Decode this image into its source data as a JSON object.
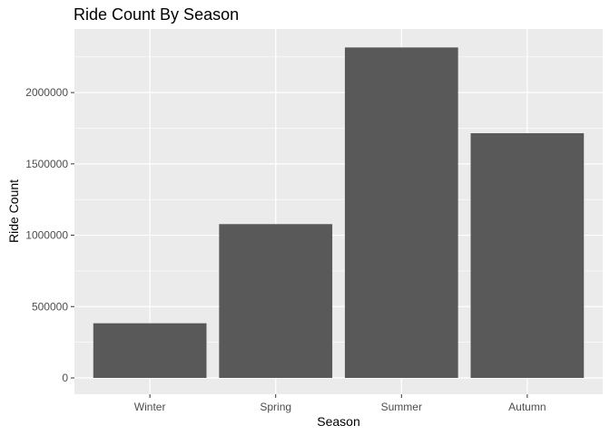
{
  "chart_data": {
    "type": "bar",
    "title": "Ride Count By Season",
    "xlabel": "Season",
    "ylabel": "Ride Count",
    "categories": [
      "Winter",
      "Spring",
      "Summer",
      "Autumn"
    ],
    "values": [
      383000,
      1078000,
      2316000,
      1715000
    ],
    "ylim": [
      0,
      2420000
    ],
    "yticks": [
      0,
      500000,
      1000000,
      1500000,
      2000000
    ],
    "ytick_labels": [
      "0",
      "500000",
      "1000000",
      "1500000",
      "2000000"
    ],
    "grid": true,
    "legend": "none",
    "colors": {
      "panel_bg": "#ebebeb",
      "grid_major": "#ffffff",
      "bar_fill": "#595959",
      "tick_text": "#4d4d4d",
      "text": "#000000"
    }
  }
}
